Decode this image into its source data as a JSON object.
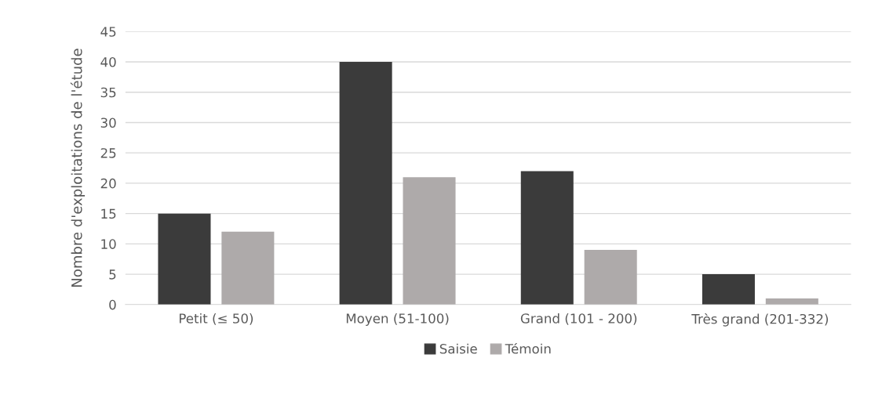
{
  "chart_data": {
    "type": "bar",
    "ylabel": "Nombre d'exploitations de l'étude",
    "categories": [
      "Petit (≤ 50)",
      "Moyen (51-100)",
      "Grand (101 - 200)",
      "Très grand (201-332)"
    ],
    "series": [
      {
        "name": "Saisie",
        "color": "#3b3b3b",
        "values": [
          15,
          40,
          22,
          5
        ]
      },
      {
        "name": "Témoin",
        "color": "#aeaaaa",
        "values": [
          12,
          21,
          9,
          1
        ]
      }
    ],
    "ylim": [
      0,
      45
    ],
    "yticks": [
      0,
      5,
      10,
      15,
      20,
      25,
      30,
      35,
      40,
      45
    ],
    "grid": "y",
    "legend": "bottom"
  }
}
